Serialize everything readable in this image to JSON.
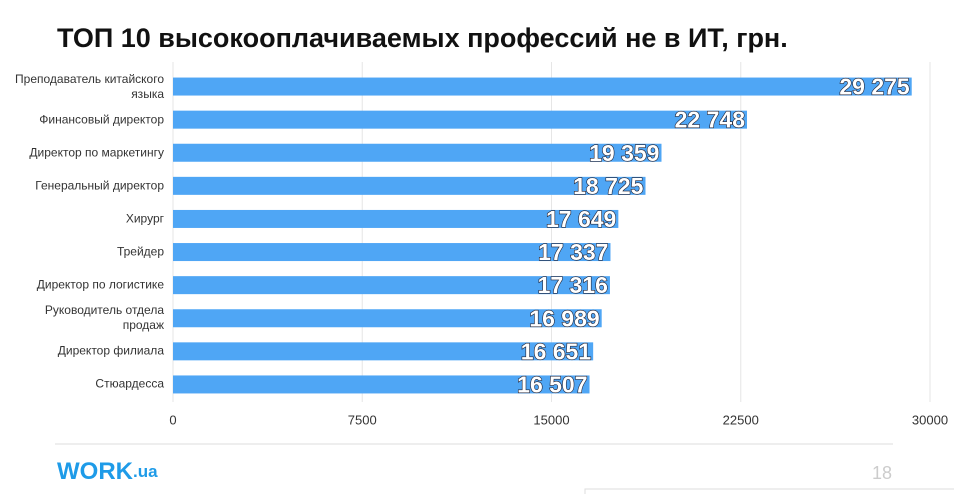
{
  "chart_data": {
    "type": "bar",
    "orientation": "horizontal",
    "title": "ТОП 10 высокооплачиваемых профессий не в ИТ, грн.",
    "categories": [
      "Преподаватель китайского языка",
      "Финансовый директор",
      "Директор по маркетингу",
      "Генеральный директор",
      "Хирург",
      "Трейдер",
      "Директор по логистике",
      "Руководитель отдела продаж",
      "Директор филиала",
      "Стюардесса"
    ],
    "values": [
      29275,
      22748,
      19359,
      18725,
      17649,
      17337,
      17316,
      16989,
      16651,
      16507
    ],
    "value_labels": [
      "29 275",
      "22 748",
      "19 359",
      "18 725",
      "17 649",
      "17 337",
      "17 316",
      "16 989",
      "16 651",
      "16 507"
    ],
    "color": "#4fa6f5",
    "xlim": [
      0,
      30000
    ],
    "xticks": [
      0,
      7500,
      15000,
      22500,
      30000
    ],
    "grid": true
  },
  "footer": {
    "logo_main": "WORK",
    "logo_suffix": ".ua",
    "page_number": "18"
  }
}
